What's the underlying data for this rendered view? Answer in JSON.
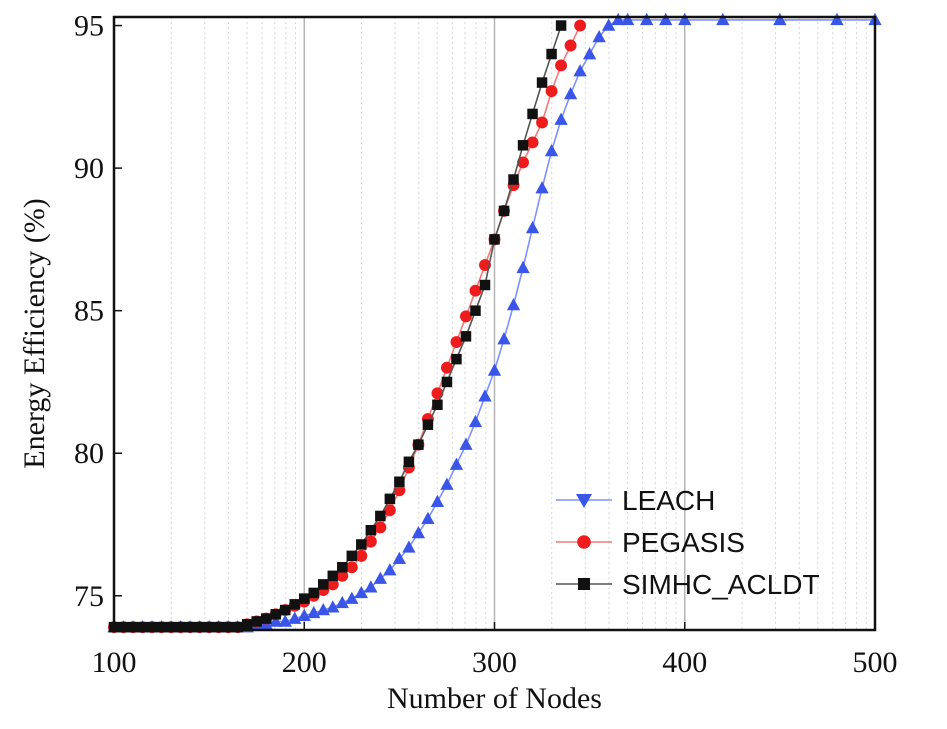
{
  "chart_data": {
    "type": "line",
    "title": "",
    "xlabel": "Number of Nodes",
    "ylabel": "Energy Efficiency (%)",
    "xlim": [
      100,
      500
    ],
    "ylim": [
      73.8,
      95.3
    ],
    "xticks": [
      100,
      200,
      300,
      400,
      500
    ],
    "xtick_labels": [
      "100",
      "200",
      "300",
      "400",
      "500"
    ],
    "yticks": [
      75,
      80,
      85,
      90,
      95
    ],
    "ytick_labels": [
      "75",
      "80",
      "85",
      "90",
      "95"
    ],
    "major_gridlines_x": [
      200,
      300,
      400
    ],
    "legend_position": "bottom-right",
    "series": [
      {
        "name": "LEACH",
        "color": "#3a56e8",
        "marker": "triangle",
        "x": [
          100,
          105,
          110,
          115,
          120,
          125,
          130,
          135,
          140,
          145,
          150,
          155,
          160,
          165,
          170,
          175,
          180,
          185,
          190,
          195,
          200,
          205,
          210,
          215,
          220,
          225,
          230,
          235,
          240,
          245,
          250,
          255,
          260,
          265,
          270,
          275,
          280,
          285,
          290,
          295,
          300,
          305,
          310,
          315,
          320,
          325,
          330,
          335,
          340,
          345,
          350,
          355,
          360,
          365,
          370,
          380,
          390,
          400,
          420,
          450,
          480,
          500
        ],
        "y": [
          73.9,
          73.9,
          73.9,
          73.9,
          73.9,
          73.9,
          73.9,
          73.9,
          73.9,
          73.9,
          73.9,
          73.9,
          73.9,
          73.9,
          73.9,
          74.0,
          74.0,
          74.1,
          74.1,
          74.2,
          74.3,
          74.4,
          74.5,
          74.6,
          74.75,
          74.9,
          75.1,
          75.3,
          75.6,
          75.9,
          76.3,
          76.7,
          77.2,
          77.7,
          78.3,
          78.9,
          79.6,
          80.3,
          81.1,
          82.0,
          82.9,
          84.0,
          85.2,
          86.5,
          87.9,
          89.3,
          90.6,
          91.7,
          92.6,
          93.4,
          94.0,
          94.6,
          95.0,
          95.2,
          95.2,
          95.2,
          95.2,
          95.2,
          95.2,
          95.2,
          95.2,
          95.2
        ]
      },
      {
        "name": "PEGASIS",
        "color": "#ee1c1c",
        "marker": "circle",
        "x": [
          100,
          105,
          110,
          115,
          120,
          125,
          130,
          135,
          140,
          145,
          150,
          155,
          160,
          165,
          170,
          175,
          180,
          185,
          190,
          195,
          200,
          205,
          210,
          215,
          220,
          225,
          230,
          235,
          240,
          245,
          250,
          255,
          260,
          265,
          270,
          275,
          280,
          285,
          290,
          295,
          300,
          305,
          310,
          315,
          320,
          325,
          330,
          335,
          340,
          345
        ],
        "y": [
          73.9,
          73.9,
          73.9,
          73.9,
          73.9,
          73.9,
          73.9,
          73.9,
          73.9,
          73.9,
          73.9,
          73.9,
          73.9,
          73.9,
          74.0,
          74.1,
          74.2,
          74.35,
          74.5,
          74.65,
          74.8,
          75.0,
          75.2,
          75.4,
          75.7,
          76.0,
          76.4,
          76.9,
          77.4,
          78.0,
          78.7,
          79.5,
          80.3,
          81.2,
          82.1,
          83.0,
          83.9,
          84.8,
          85.7,
          86.6,
          87.5,
          88.5,
          89.4,
          90.2,
          90.9,
          91.6,
          92.7,
          93.6,
          94.3,
          95.0
        ]
      },
      {
        "name": "SIMHC_ACLDT",
        "color": "#111111",
        "marker": "square",
        "x": [
          100,
          105,
          110,
          115,
          120,
          125,
          130,
          135,
          140,
          145,
          150,
          155,
          160,
          165,
          170,
          175,
          180,
          185,
          190,
          195,
          200,
          205,
          210,
          215,
          220,
          225,
          230,
          235,
          240,
          245,
          250,
          255,
          260,
          265,
          270,
          275,
          280,
          285,
          290,
          295,
          300,
          305,
          310,
          315,
          320,
          325,
          330,
          335
        ],
        "y": [
          73.9,
          73.9,
          73.9,
          73.9,
          73.9,
          73.9,
          73.9,
          73.9,
          73.9,
          73.9,
          73.9,
          73.9,
          73.9,
          73.9,
          74.0,
          74.1,
          74.2,
          74.35,
          74.5,
          74.7,
          74.9,
          75.1,
          75.4,
          75.7,
          76.0,
          76.4,
          76.8,
          77.3,
          77.8,
          78.4,
          79.0,
          79.7,
          80.3,
          81.0,
          81.7,
          82.5,
          83.3,
          84.1,
          85.0,
          85.9,
          87.5,
          88.5,
          89.6,
          90.8,
          91.9,
          93.0,
          94.0,
          95.0
        ]
      }
    ]
  }
}
